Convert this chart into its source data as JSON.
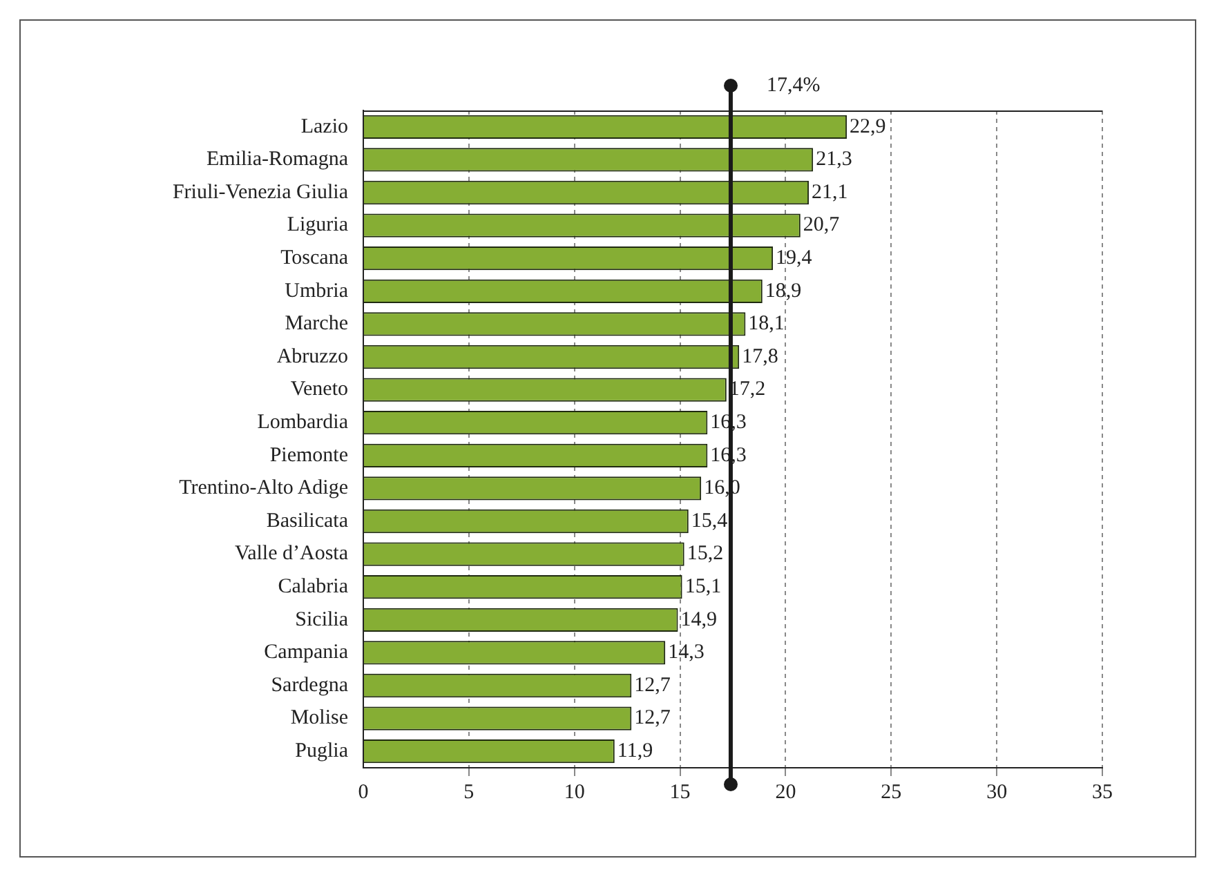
{
  "chart_data": {
    "type": "bar",
    "orientation": "horizontal",
    "categories": [
      "Lazio",
      "Emilia-Romagna",
      "Friuli-Venezia Giulia",
      "Liguria",
      "Toscana",
      "Umbria",
      "Marche",
      "Abruzzo",
      "Veneto",
      "Lombardia",
      "Piemonte",
      "Trentino-Alto Adige",
      "Basilicata",
      "Valle d’Aosta",
      "Calabria",
      "Sicilia",
      "Campania",
      "Sardegna",
      "Molise",
      "Puglia"
    ],
    "values": [
      22.9,
      21.3,
      21.1,
      20.7,
      19.4,
      18.9,
      18.1,
      17.8,
      17.2,
      16.3,
      16.3,
      16.0,
      15.4,
      15.2,
      15.1,
      14.9,
      14.3,
      12.7,
      12.7,
      11.9
    ],
    "value_labels": [
      "22,9",
      "21,3",
      "21,1",
      "20,7",
      "19,4",
      "18,9",
      "18,1",
      "17,8",
      "17,2",
      "16,3",
      "16,3",
      "16,0",
      "15,4",
      "15,2",
      "15,1",
      "14,9",
      "14,3",
      "12,7",
      "12,7",
      "11,9"
    ],
    "color": "#86ae34",
    "xlim": [
      0,
      35
    ],
    "xticks": [
      0,
      5,
      10,
      15,
      20,
      25,
      30,
      35
    ],
    "grid": "x",
    "legend": false,
    "ref_lines": [
      {
        "axis": "x",
        "value": 17.4,
        "label": "17,4%",
        "color": "#1a1a1a"
      }
    ]
  }
}
